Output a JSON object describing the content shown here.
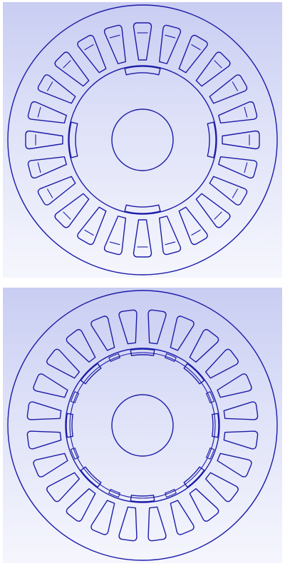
{
  "views": [
    {
      "id": "top",
      "slot_count": 24,
      "slot_start_deg": 0,
      "rotor_pole_count": 4,
      "rotor_pole_start_deg": 0,
      "shaft": true
    },
    {
      "id": "bottom",
      "slot_count": 24,
      "slot_start_deg": 7.5,
      "rotor_pole_count": 8,
      "rotor_pole_start_deg": 0,
      "shaft": true
    }
  ],
  "colors": {
    "outline": "#1c1ca8",
    "background_top": "#c9cdf2",
    "background_bottom": "#f5f6fd"
  }
}
